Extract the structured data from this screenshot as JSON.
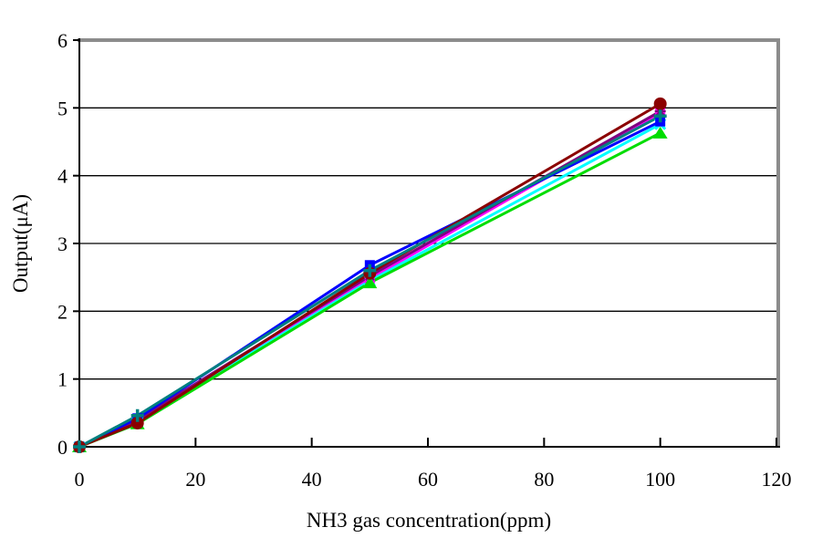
{
  "figure": {
    "background": "#FFFFFF"
  },
  "chart_data": {
    "type": "line",
    "title": "",
    "xlabel": "NH3 gas concentration(ppm)",
    "ylabel": "Output(μA)",
    "x": [
      0,
      10,
      50,
      100
    ],
    "xlim": [
      0,
      120
    ],
    "ylim": [
      0,
      6
    ],
    "xticks": [
      0,
      20,
      40,
      60,
      80,
      100,
      120
    ],
    "yticks": [
      0,
      1,
      2,
      3,
      4,
      5,
      6
    ],
    "grid": "horizontal",
    "legend": "none",
    "axis_color": "#000000",
    "border_color": "#8C8C8C",
    "line_width": 3,
    "series": [
      {
        "name": "magenta-square",
        "color": "#FF00FF",
        "marker": "square",
        "values": [
          0,
          0.38,
          2.48,
          4.93
        ]
      },
      {
        "name": "cyan-x",
        "color": "#00FFFF",
        "marker": "x",
        "values": [
          0,
          0.36,
          2.45,
          4.76
        ]
      },
      {
        "name": "purple-asterisk",
        "color": "#800080",
        "marker": "asterisk",
        "values": [
          0,
          0.4,
          2.52,
          4.95
        ]
      },
      {
        "name": "green-triangle",
        "color": "#00DD00",
        "marker": "triangle",
        "values": [
          0,
          0.34,
          2.42,
          4.63
        ]
      },
      {
        "name": "blue-square",
        "color": "#0000FF",
        "marker": "square",
        "values": [
          0,
          0.42,
          2.68,
          4.8
        ]
      },
      {
        "name": "maroon-circle",
        "color": "#8B0000",
        "marker": "circle",
        "values": [
          0,
          0.35,
          2.56,
          5.06
        ]
      },
      {
        "name": "teal-plus",
        "color": "#008080",
        "marker": "plus",
        "values": [
          0,
          0.46,
          2.6,
          4.88
        ]
      }
    ]
  }
}
